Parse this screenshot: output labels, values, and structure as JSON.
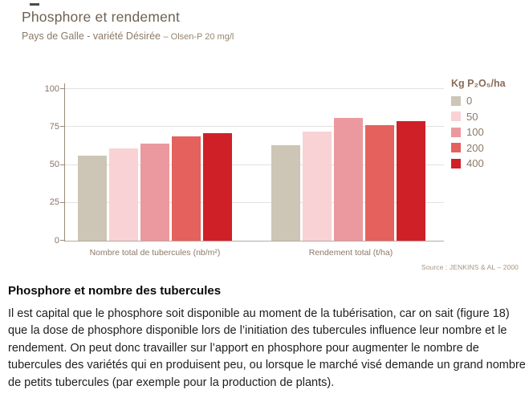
{
  "chart_data": {
    "type": "bar",
    "title": "Phosphore et rendement",
    "subtitle_main": "Pays de Galle - variété Désirée",
    "subtitle_detail": "– Olsen-P 20 mg/l",
    "legend_title": "Kg P₂O₅/ha",
    "legend_position": "right",
    "categories": [
      "Nombre total de tubercules (nb/m²)",
      "Rendement total (t/ha)"
    ],
    "series": [
      {
        "name": "0",
        "color": "#cdc5b5",
        "values": [
          56,
          63
        ]
      },
      {
        "name": "50",
        "color": "#f8d2d5",
        "values": [
          61,
          72
        ]
      },
      {
        "name": "100",
        "color": "#eb999f",
        "values": [
          64,
          81
        ]
      },
      {
        "name": "200",
        "color": "#e4615d",
        "values": [
          69,
          76
        ]
      },
      {
        "name": "400",
        "color": "#cf2028",
        "values": [
          71,
          79
        ]
      }
    ],
    "xlabel": "",
    "ylabel": "",
    "ylim": [
      0,
      100
    ],
    "yticks": [
      0,
      25,
      50,
      75,
      100
    ],
    "grid": true,
    "source": "Source : JENKINS & AL – 2000"
  },
  "article": {
    "heading": "Phosphore et nombre des tubercules",
    "body": "Il est capital que le phosphore soit disponible au moment de la tubérisation, car on sait (figure 18) que la dose de phosphore disponible lors de l’initiation des tubercules influence leur nombre et le rendement. On peut donc travailler sur l’apport en phosphore pour augmenter le nombre de tubercules des variétés qui en produisent peu, ou lorsque le marché visé demande un grand nombre de petits tubercules (par exemple pour la production de plants)."
  },
  "colors": {
    "title_text": "#6e6152",
    "subtitle_text": "#8b7a67",
    "axis_text": "#8a7365",
    "axis_line": "#9a8a7c",
    "gridline": "#e4e1dd",
    "baseline": "#b2aaa0",
    "source_text": "#a8937e"
  }
}
